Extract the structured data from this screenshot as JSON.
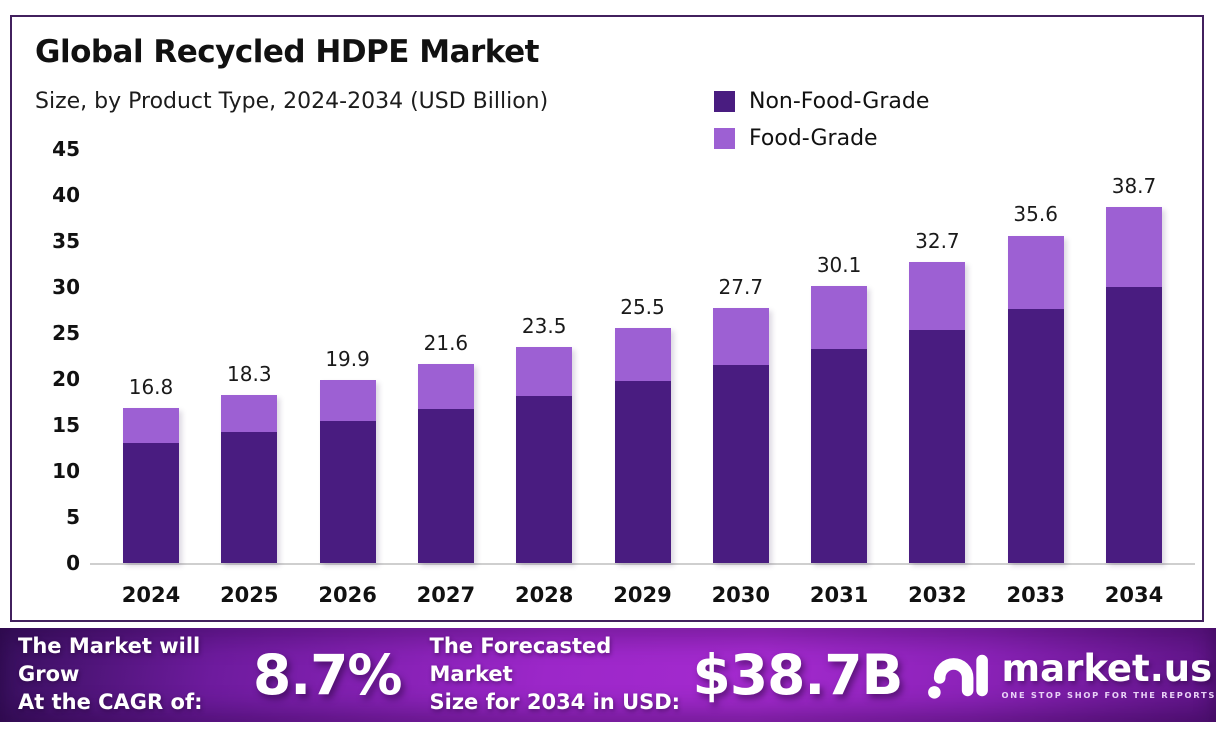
{
  "header": {
    "title": "Global Recycled HDPE Market",
    "subtitle": "Size, by Product Type, 2024-2034 (USD Billion)"
  },
  "legend": [
    {
      "label": "Non-Food-Grade",
      "color": "#491C80"
    },
    {
      "label": "Food-Grade",
      "color": "#9D60D3"
    }
  ],
  "chart_data": {
    "type": "bar",
    "stacked": true,
    "title": "Global Recycled HDPE Market",
    "subtitle": "Size, by Product Type, 2024-2034 (USD Billion)",
    "categories": [
      "2024",
      "2025",
      "2026",
      "2027",
      "2028",
      "2029",
      "2030",
      "2031",
      "2032",
      "2033",
      "2034"
    ],
    "series": [
      {
        "name": "Non-Food-Grade",
        "color": "#491C80",
        "values": [
          13.0,
          14.2,
          15.4,
          16.7,
          18.2,
          19.8,
          21.5,
          23.3,
          25.3,
          27.6,
          30.0
        ]
      },
      {
        "name": "Food-Grade",
        "color": "#9D60D3",
        "values": [
          3.8,
          4.1,
          4.5,
          4.9,
          5.3,
          5.7,
          6.2,
          6.8,
          7.4,
          8.0,
          8.7
        ]
      }
    ],
    "totals": [
      16.8,
      18.3,
      19.9,
      21.6,
      23.5,
      25.5,
      27.7,
      30.1,
      32.7,
      35.6,
      38.7
    ],
    "total_labels": [
      "16.8",
      "18.3",
      "19.9",
      "21.6",
      "23.5",
      "25.5",
      "27.7",
      "30.1",
      "32.7",
      "35.6",
      "38.7"
    ],
    "yticks": [
      0,
      5,
      10,
      15,
      20,
      25,
      30,
      35,
      40,
      45
    ],
    "ylim": [
      0,
      45
    ],
    "xlabel": "",
    "ylabel": "",
    "grid": false,
    "legend_position": "top-right"
  },
  "banner": {
    "growth_label_line1": "The Market will Grow",
    "growth_label_line2": "At the CAGR of:",
    "cagr_value": "8.7%",
    "forecast_label_line1": "The Forecasted Market",
    "forecast_label_line2": "Size for 2034 in USD:",
    "forecast_value": "$38.7B",
    "logo_text": "market.us",
    "logo_tagline": "ONE STOP SHOP FOR THE REPORTS"
  },
  "colors": {
    "non_food_grade": "#491C80",
    "food_grade": "#9D60D3",
    "card_border": "#42205E",
    "axis_line": "#CFCFCF",
    "banner_gradient_left": "#38105E",
    "banner_gradient_center": "#A42ACF",
    "banner_gradient_right": "#5E1486",
    "text_dark": "#111111",
    "text_light": "#FFFFFF"
  }
}
